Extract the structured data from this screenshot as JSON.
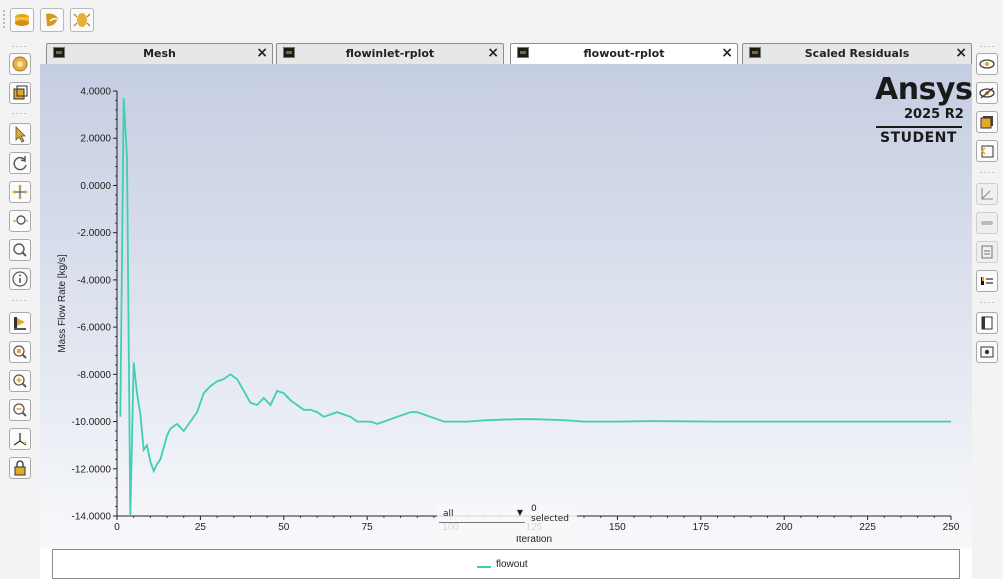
{
  "tabs": [
    {
      "label": "Mesh",
      "active": false
    },
    {
      "label": "flowinlet-rplot",
      "active": false
    },
    {
      "label": "flowout-rplot",
      "active": true
    },
    {
      "label": "Scaled Residuals",
      "active": false
    }
  ],
  "tab_close_glyph": "×",
  "logo": {
    "brand": "Ansys",
    "version": "2025 R2",
    "edition": "STUDENT"
  },
  "filter": {
    "selected_value": "all",
    "selection_count": "0 selected"
  },
  "colors": {
    "series": "#3fcfb4",
    "background_top": "#c5cde2",
    "background_bottom": "#f8f9fb"
  },
  "top_toolbar_icons": [
    "display-icon",
    "color-icon",
    "lighting-icon"
  ],
  "left_toolbar_icons": [
    "display-mesh-icon",
    "fit-view-icon",
    "select-arrow-icon",
    "rotate-icon",
    "pan-icon",
    "zoom-icon",
    "zoom-box-icon",
    "info-icon",
    "probe-icon",
    "zoom-in-icon",
    "zoom-out-icon",
    "zoom-reset-icon",
    "axes-icon",
    "lock-icon"
  ],
  "right_toolbar_icons": [
    "view-icon",
    "hide-icon",
    "window-icon",
    "undo-icon",
    "plot-icon",
    "slider-icon",
    "document-icon",
    "legend-icon",
    "copy-icon",
    "camera-icon"
  ],
  "chart_data": {
    "type": "line",
    "title": "",
    "xlabel": "Iteration",
    "ylabel": "Mass Flow Rate [kg/s]",
    "xlim": [
      0,
      250
    ],
    "ylim": [
      -14,
      4
    ],
    "x_ticks": [
      0,
      25,
      50,
      75,
      100,
      125,
      150,
      175,
      200,
      225,
      250
    ],
    "y_ticks": [
      "4.0000",
      "2.0000",
      "0.0000",
      "-2.0000",
      "-4.0000",
      "-6.0000",
      "-8.0000",
      "-10.0000",
      "-12.0000",
      "-14.0000"
    ],
    "y_tick_values": [
      4,
      2,
      0,
      -2,
      -4,
      -6,
      -8,
      -10,
      -12,
      -14
    ],
    "legend": "bottom-center",
    "series": [
      {
        "name": "flowout",
        "x": [
          1,
          2,
          3,
          4,
          5,
          6,
          7,
          8,
          9,
          10,
          11,
          12,
          13,
          14,
          15,
          16,
          18,
          20,
          22,
          24,
          26,
          28,
          30,
          32,
          34,
          36,
          38,
          40,
          42,
          44,
          46,
          48,
          50,
          52,
          54,
          56,
          58,
          60,
          62,
          64,
          66,
          68,
          70,
          72,
          74,
          76,
          78,
          80,
          82,
          84,
          86,
          88,
          90,
          92,
          94,
          96,
          98,
          100,
          105,
          110,
          115,
          120,
          125,
          130,
          135,
          140,
          150,
          160,
          170,
          180,
          190,
          200,
          210,
          220,
          230,
          240,
          250
        ],
        "y": [
          -9.8,
          3.7,
          1.2,
          -14.0,
          -7.5,
          -8.8,
          -9.7,
          -11.2,
          -11.0,
          -11.7,
          -12.1,
          -11.8,
          -11.6,
          -11.1,
          -10.6,
          -10.3,
          -10.1,
          -10.4,
          -10.0,
          -9.6,
          -8.8,
          -8.5,
          -8.3,
          -8.2,
          -8.0,
          -8.2,
          -8.7,
          -9.2,
          -9.3,
          -9.0,
          -9.3,
          -8.7,
          -8.8,
          -9.1,
          -9.3,
          -9.5,
          -9.5,
          -9.6,
          -9.8,
          -9.7,
          -9.6,
          -9.7,
          -9.8,
          -10.0,
          -10.0,
          -10.0,
          -10.1,
          -10.0,
          -9.9,
          -9.8,
          -9.7,
          -9.6,
          -9.6,
          -9.7,
          -9.8,
          -9.9,
          -10.0,
          -10.0,
          -10.0,
          -9.95,
          -9.92,
          -9.9,
          -9.9,
          -9.92,
          -9.95,
          -10.0,
          -10.0,
          -9.98,
          -9.99,
          -10.0,
          -10.0,
          -10.0,
          -10.0,
          -10.0,
          -10.0,
          -10.0,
          -10.0
        ]
      }
    ]
  }
}
